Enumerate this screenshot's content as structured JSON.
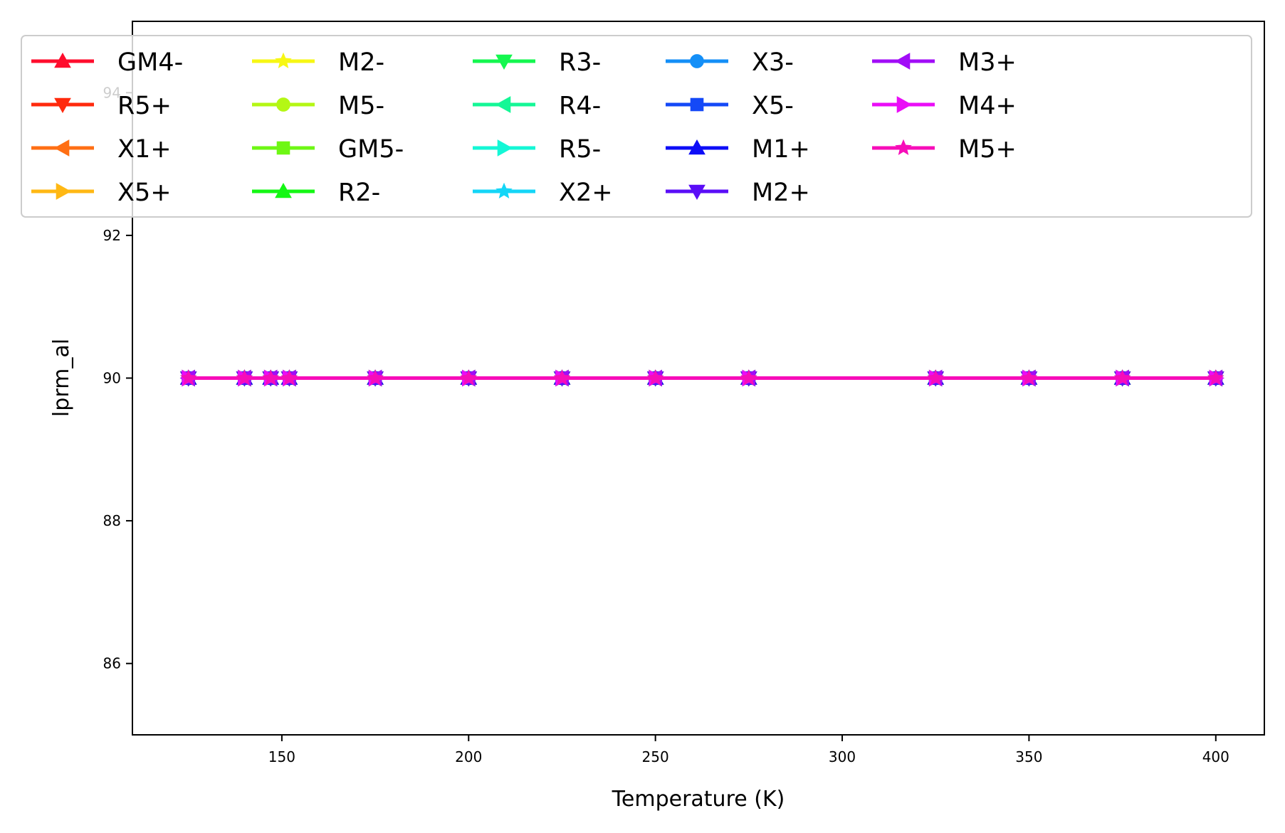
{
  "chart_data": {
    "type": "line",
    "title": "",
    "xlabel": "Temperature (K)",
    "ylabel": "lprm_al",
    "xlim": [
      110,
      413
    ],
    "ylim": [
      85,
      95
    ],
    "xticks": [
      150,
      200,
      250,
      300,
      350,
      400
    ],
    "yticks": [
      86,
      88,
      90,
      92,
      94
    ],
    "grid": false,
    "legend_position": "top",
    "legend_columns": 6,
    "x": [
      125,
      140,
      147,
      152,
      175,
      200,
      225,
      250,
      275,
      325,
      350,
      375,
      400
    ],
    "series": [
      {
        "name": "GM4-",
        "color": "#ff0d2d",
        "marker": "triangle-up",
        "values": [
          90,
          90,
          90,
          90,
          90,
          90,
          90,
          90,
          90,
          90,
          90,
          90,
          90
        ]
      },
      {
        "name": "R5+",
        "color": "#ff2a0d",
        "marker": "triangle-down",
        "values": [
          90,
          90,
          90,
          90,
          90,
          90,
          90,
          90,
          90,
          90,
          90,
          90,
          90
        ]
      },
      {
        "name": "X1+",
        "color": "#ff6f14",
        "marker": "triangle-left",
        "values": [
          90,
          90,
          90,
          90,
          90,
          90,
          90,
          90,
          90,
          90,
          90,
          90,
          90
        ]
      },
      {
        "name": "X5+",
        "color": "#ffb814",
        "marker": "triangle-right",
        "values": [
          90,
          90,
          90,
          90,
          90,
          90,
          90,
          90,
          90,
          90,
          90,
          90,
          90
        ]
      },
      {
        "name": "M2-",
        "color": "#f7f714",
        "marker": "star",
        "values": [
          90,
          90,
          90,
          90,
          90,
          90,
          90,
          90,
          90,
          90,
          90,
          90,
          90
        ]
      },
      {
        "name": "M5-",
        "color": "#b4f714",
        "marker": "circle",
        "values": [
          90,
          90,
          90,
          90,
          90,
          90,
          90,
          90,
          90,
          90,
          90,
          90,
          90
        ]
      },
      {
        "name": "GM5-",
        "color": "#6ef714",
        "marker": "square",
        "values": [
          90,
          90,
          90,
          90,
          90,
          90,
          90,
          90,
          90,
          90,
          90,
          90,
          90
        ]
      },
      {
        "name": "R2-",
        "color": "#14f714",
        "marker": "triangle-up",
        "values": [
          90,
          90,
          90,
          90,
          90,
          90,
          90,
          90,
          90,
          90,
          90,
          90,
          90
        ]
      },
      {
        "name": "R3-",
        "color": "#14f74f",
        "marker": "triangle-down",
        "values": [
          90,
          90,
          90,
          90,
          90,
          90,
          90,
          90,
          90,
          90,
          90,
          90,
          90
        ]
      },
      {
        "name": "R4-",
        "color": "#14f796",
        "marker": "triangle-left",
        "values": [
          90,
          90,
          90,
          90,
          90,
          90,
          90,
          90,
          90,
          90,
          90,
          90,
          90
        ]
      },
      {
        "name": "R5-",
        "color": "#14f7d6",
        "marker": "triangle-right",
        "values": [
          90,
          90,
          90,
          90,
          90,
          90,
          90,
          90,
          90,
          90,
          90,
          90,
          90
        ]
      },
      {
        "name": "X2+",
        "color": "#14d6f7",
        "marker": "star",
        "values": [
          90,
          90,
          90,
          90,
          90,
          90,
          90,
          90,
          90,
          90,
          90,
          90,
          90
        ]
      },
      {
        "name": "X3-",
        "color": "#148ff7",
        "marker": "circle",
        "values": [
          90,
          90,
          90,
          90,
          90,
          90,
          90,
          90,
          90,
          90,
          90,
          90,
          90
        ]
      },
      {
        "name": "X5-",
        "color": "#1449f7",
        "marker": "square",
        "values": [
          90,
          90,
          90,
          90,
          90,
          90,
          90,
          90,
          90,
          90,
          90,
          90,
          90
        ]
      },
      {
        "name": "M1+",
        "color": "#0d0df7",
        "marker": "triangle-up",
        "values": [
          90,
          90,
          90,
          90,
          90,
          90,
          90,
          90,
          90,
          90,
          90,
          90,
          90
        ]
      },
      {
        "name": "M2+",
        "color": "#5a0df7",
        "marker": "triangle-down",
        "values": [
          90,
          90,
          90,
          90,
          90,
          90,
          90,
          90,
          90,
          90,
          90,
          90,
          90
        ]
      },
      {
        "name": "M3+",
        "color": "#a10df7",
        "marker": "triangle-left",
        "values": [
          90,
          90,
          90,
          90,
          90,
          90,
          90,
          90,
          90,
          90,
          90,
          90,
          90
        ]
      },
      {
        "name": "M4+",
        "color": "#ea0df7",
        "marker": "triangle-right",
        "values": [
          90,
          90,
          90,
          90,
          90,
          90,
          90,
          90,
          90,
          90,
          90,
          90,
          90
        ]
      },
      {
        "name": "M5+",
        "color": "#f70db9",
        "marker": "star",
        "values": [
          90,
          90,
          90,
          90,
          90,
          90,
          90,
          90,
          90,
          90,
          90,
          90,
          90
        ]
      }
    ]
  }
}
